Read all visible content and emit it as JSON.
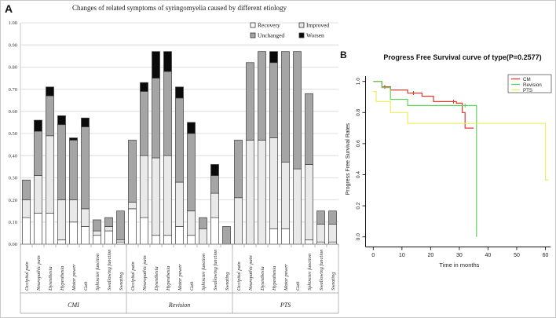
{
  "figure": {
    "panel_a_label": "A",
    "panel_b_label": "B",
    "background": "#ffffff"
  },
  "chart_data": [
    {
      "type": "bar",
      "stacked": true,
      "title": "Changes of related symptoms of syringomyelia caused by different etiology",
      "xlabel": "",
      "ylabel": "",
      "ylim": [
        0,
        1.0
      ],
      "grid": true,
      "ytick_labels": [
        "0.00",
        "0.10",
        "0.20",
        "0.30",
        "0.40",
        "0.50",
        "0.60",
        "0.70",
        "0.80",
        "0.90",
        "1.00"
      ],
      "legend": {
        "position": "top-right-inside",
        "entries": [
          "Recovery",
          "Improved",
          "Unchanged",
          "Worsen"
        ]
      },
      "series_colors": {
        "Recovery": "#ffffff",
        "Improved": "#e9e9e9",
        "Unchanged": "#a5a5a5",
        "Worsen": "#0a0a0a"
      },
      "categories": [
        "Occipital pain",
        "Neuropathic pain",
        "Dysesthesia",
        "Hypesthesia",
        "Motor power",
        "Gait",
        "Sphincter function",
        "Swallowing function",
        "Sweating"
      ],
      "groups": [
        {
          "label": "CMI",
          "values": {
            "Recovery": [
              0.12,
              0.14,
              0.14,
              0.02,
              0.1,
              0.08,
              0.04,
              0.06,
              0.01
            ],
            "Improved": [
              0.08,
              0.17,
              0.35,
              0.18,
              0.1,
              0.08,
              0.02,
              0.02,
              0.01
            ],
            "Unchanged": [
              0.09,
              0.2,
              0.18,
              0.34,
              0.27,
              0.37,
              0.05,
              0.04,
              0.13
            ],
            "Worsen": [
              0.0,
              0.05,
              0.04,
              0.04,
              0.01,
              0.04,
              0.0,
              0.0,
              0.0
            ]
          }
        },
        {
          "label": "Revision",
          "values": {
            "Recovery": [
              0.16,
              0.12,
              0.04,
              0.04,
              0.08,
              0.04,
              0.0,
              0.12,
              0.0
            ],
            "Improved": [
              0.03,
              0.28,
              0.35,
              0.36,
              0.2,
              0.11,
              0.07,
              0.11,
              0.0
            ],
            "Unchanged": [
              0.28,
              0.29,
              0.36,
              0.38,
              0.38,
              0.35,
              0.05,
              0.08,
              0.08
            ],
            "Worsen": [
              0.0,
              0.04,
              0.12,
              0.09,
              0.05,
              0.05,
              0.0,
              0.05,
              0.0
            ]
          }
        },
        {
          "label": "PTS",
          "values": {
            "Recovery": [
              0.0,
              0.0,
              0.0,
              0.07,
              0.07,
              0.0,
              0.02,
              0.01,
              0.01
            ],
            "Improved": [
              0.21,
              0.47,
              0.47,
              0.41,
              0.3,
              0.34,
              0.34,
              0.08,
              0.08
            ],
            "Unchanged": [
              0.26,
              0.35,
              0.4,
              0.34,
              0.5,
              0.53,
              0.32,
              0.06,
              0.06
            ],
            "Worsen": [
              0.0,
              0.0,
              0.0,
              0.05,
              0.0,
              0.0,
              0.0,
              0.0,
              0.0
            ]
          }
        }
      ]
    },
    {
      "type": "line",
      "step": true,
      "title": "Progress Free Survival curve of type(P=0.2577)",
      "xlabel": "Time in months",
      "ylabel": "Progress Free Survival Rates",
      "xlim": [
        0,
        62
      ],
      "ylim": [
        0,
        1.0
      ],
      "xticks": [
        0,
        10,
        20,
        30,
        40,
        50,
        60
      ],
      "ytick_labels": [
        "0.0",
        "0.2",
        "0.4",
        "0.6",
        "0.8",
        "1.0"
      ],
      "legend": {
        "position": "top-right-inside",
        "entries": [
          "CM",
          "Revision",
          "PTS"
        ]
      },
      "series": [
        {
          "name": "CM",
          "color": "#e03a2f",
          "points": [
            [
              0,
              1.0
            ],
            [
              3,
              1.0
            ],
            [
              3,
              0.965
            ],
            [
              6,
              0.965
            ],
            [
              6,
              0.945
            ],
            [
              12,
              0.945
            ],
            [
              12,
              0.925
            ],
            [
              17,
              0.925
            ],
            [
              17,
              0.905
            ],
            [
              21,
              0.905
            ],
            [
              21,
              0.87
            ],
            [
              29,
              0.87
            ],
            [
              29,
              0.86
            ],
            [
              31,
              0.86
            ],
            [
              31,
              0.8
            ],
            [
              32,
              0.8
            ],
            [
              32,
              0.7
            ],
            [
              35,
              0.7
            ]
          ],
          "censors": [
            [
              4,
              0.965
            ],
            [
              14,
              0.925
            ],
            [
              28,
              0.87
            ]
          ]
        },
        {
          "name": "Revision",
          "color": "#5fd35f",
          "points": [
            [
              0,
              1.0
            ],
            [
              3,
              1.0
            ],
            [
              3,
              0.96
            ],
            [
              6,
              0.96
            ],
            [
              6,
              0.885
            ],
            [
              12,
              0.885
            ],
            [
              12,
              0.845
            ],
            [
              36,
              0.845
            ],
            [
              36,
              0.0
            ]
          ],
          "censors": [
            [
              32,
              0.845
            ]
          ]
        },
        {
          "name": "PTS",
          "color": "#eded5e",
          "points": [
            [
              0,
              0.935
            ],
            [
              1,
              0.935
            ],
            [
              1,
              0.87
            ],
            [
              6,
              0.87
            ],
            [
              6,
              0.8
            ],
            [
              12,
              0.8
            ],
            [
              12,
              0.73
            ],
            [
              60,
              0.73
            ],
            [
              60,
              0.365
            ],
            [
              61,
              0.365
            ]
          ],
          "censors": []
        }
      ]
    }
  ]
}
